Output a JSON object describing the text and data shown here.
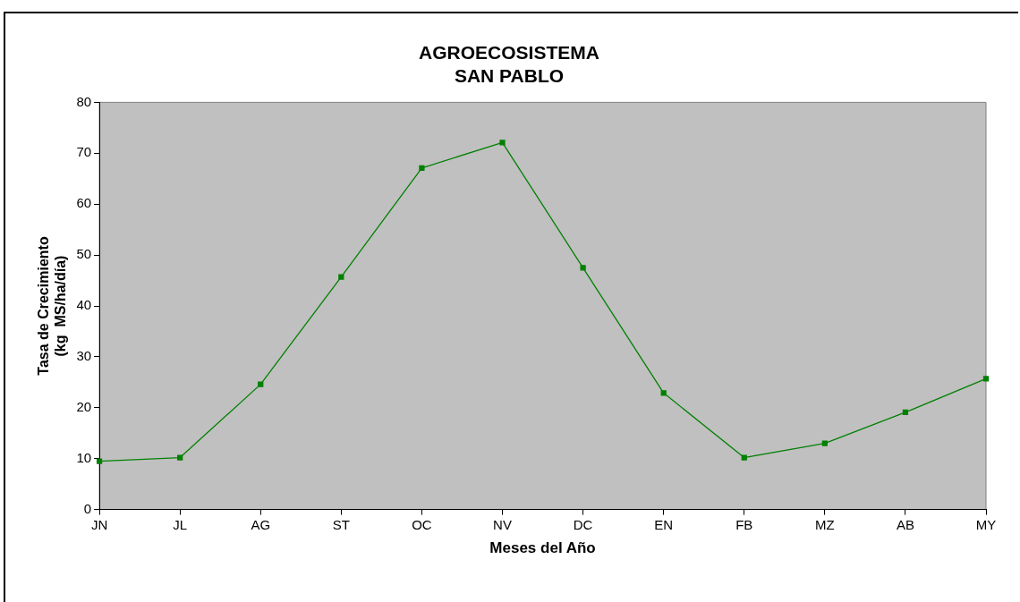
{
  "chart_data": {
    "type": "line",
    "title": "AGROECOSISTEMA\nSAN PABLO",
    "xlabel": "Meses del Año",
    "ylabel": "Tasa de Crecimiento\n(kg  MS/ha/día)",
    "categories": [
      "JN",
      "JL",
      "AG",
      "ST",
      "OC",
      "NV",
      "DC",
      "EN",
      "FB",
      "MZ",
      "AB",
      "MY"
    ],
    "series": [
      {
        "color": "#008000",
        "values": [
          9.5,
          10.2,
          24.6,
          45.7,
          67.1,
          72.1,
          47.5,
          22.9,
          10.2,
          13.0,
          19.1,
          25.7
        ]
      }
    ],
    "ylim": [
      0,
      80
    ],
    "yticks": [
      0,
      10,
      20,
      30,
      40,
      50,
      60,
      70,
      80
    ],
    "grid": false,
    "legend": false,
    "marker": "square",
    "line_style": "solid"
  }
}
